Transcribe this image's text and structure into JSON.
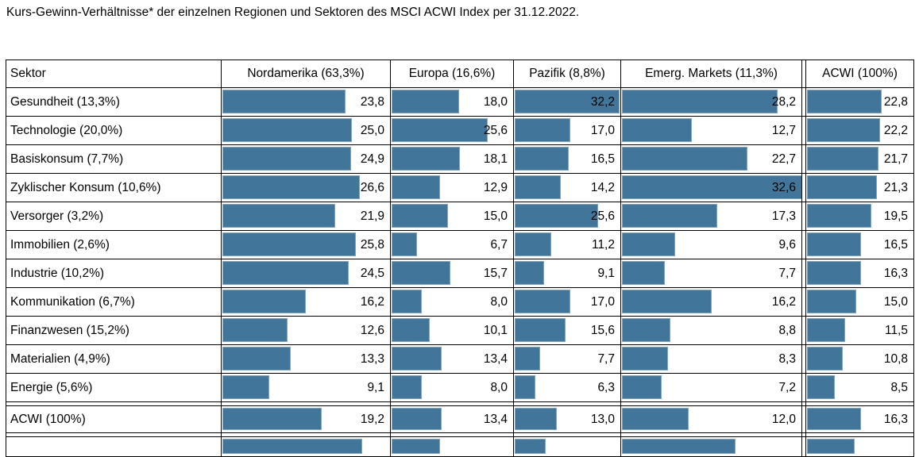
{
  "chart_data": {
    "type": "table",
    "title": "Kurs-Gewinn-Verhältnisse* der einzelnen Regionen und Sektoren des MSCI ACWI Index per 31.12.2022.",
    "columns": [
      "Sektor",
      "Nordamerika (63,3%)",
      "Europa (16,6%)",
      "Pazifik (8,8%)",
      "Emerg. Markets (11,3%)",
      "ACWI (100%)"
    ],
    "bar_color": "#41769a",
    "bar_scale_max": 32.6,
    "rows": [
      {
        "label": "Gesundheit (13,3%)",
        "values": [
          "23,8",
          "18,0",
          "32,2",
          "28,2",
          "22,8"
        ]
      },
      {
        "label": "Technologie (20,0%)",
        "values": [
          "25,0",
          "25,6",
          "17,0",
          "12,7",
          "22,2"
        ]
      },
      {
        "label": "Basiskonsum (7,7%)",
        "values": [
          "24,9",
          "18,1",
          "16,5",
          "22,7",
          "21,7"
        ]
      },
      {
        "label": "Zyklischer Konsum (10,6%)",
        "values": [
          "26,6",
          "12,9",
          "14,2",
          "32,6",
          "21,3"
        ]
      },
      {
        "label": "Versorger (3,2%)",
        "values": [
          "21,9",
          "15,0",
          "25,6",
          "17,3",
          "19,5"
        ]
      },
      {
        "label": "Immobilien (2,6%)",
        "values": [
          "25,8",
          "6,7",
          "11,2",
          "9,6",
          "16,5"
        ]
      },
      {
        "label": "Industrie (10,2%)",
        "values": [
          "24,5",
          "15,7",
          "9,1",
          "7,7",
          "16,3"
        ]
      },
      {
        "label": "Kommunikation (6,7%)",
        "values": [
          "16,2",
          "8,0",
          "17,0",
          "16,2",
          "15,0"
        ]
      },
      {
        "label": "Finanzwesen (15,2%)",
        "values": [
          "12,6",
          "10,1",
          "15,6",
          "8,8",
          "11,5"
        ]
      },
      {
        "label": "Materialien (4,9%)",
        "values": [
          "13,3",
          "13,4",
          "7,7",
          "8,3",
          "10,8"
        ]
      },
      {
        "label": "Energie (5,6%)",
        "values": [
          "9,1",
          "8,0",
          "6,3",
          "7,2",
          "8,5"
        ]
      }
    ],
    "summary_row": {
      "label": "ACWI (100%)",
      "values": [
        "19,2",
        "13,4",
        "13,0",
        "12,0",
        "16,3"
      ]
    },
    "partial_row_bars": [
      27.0,
      13.0,
      9.5,
      20.5,
      14.5
    ]
  }
}
